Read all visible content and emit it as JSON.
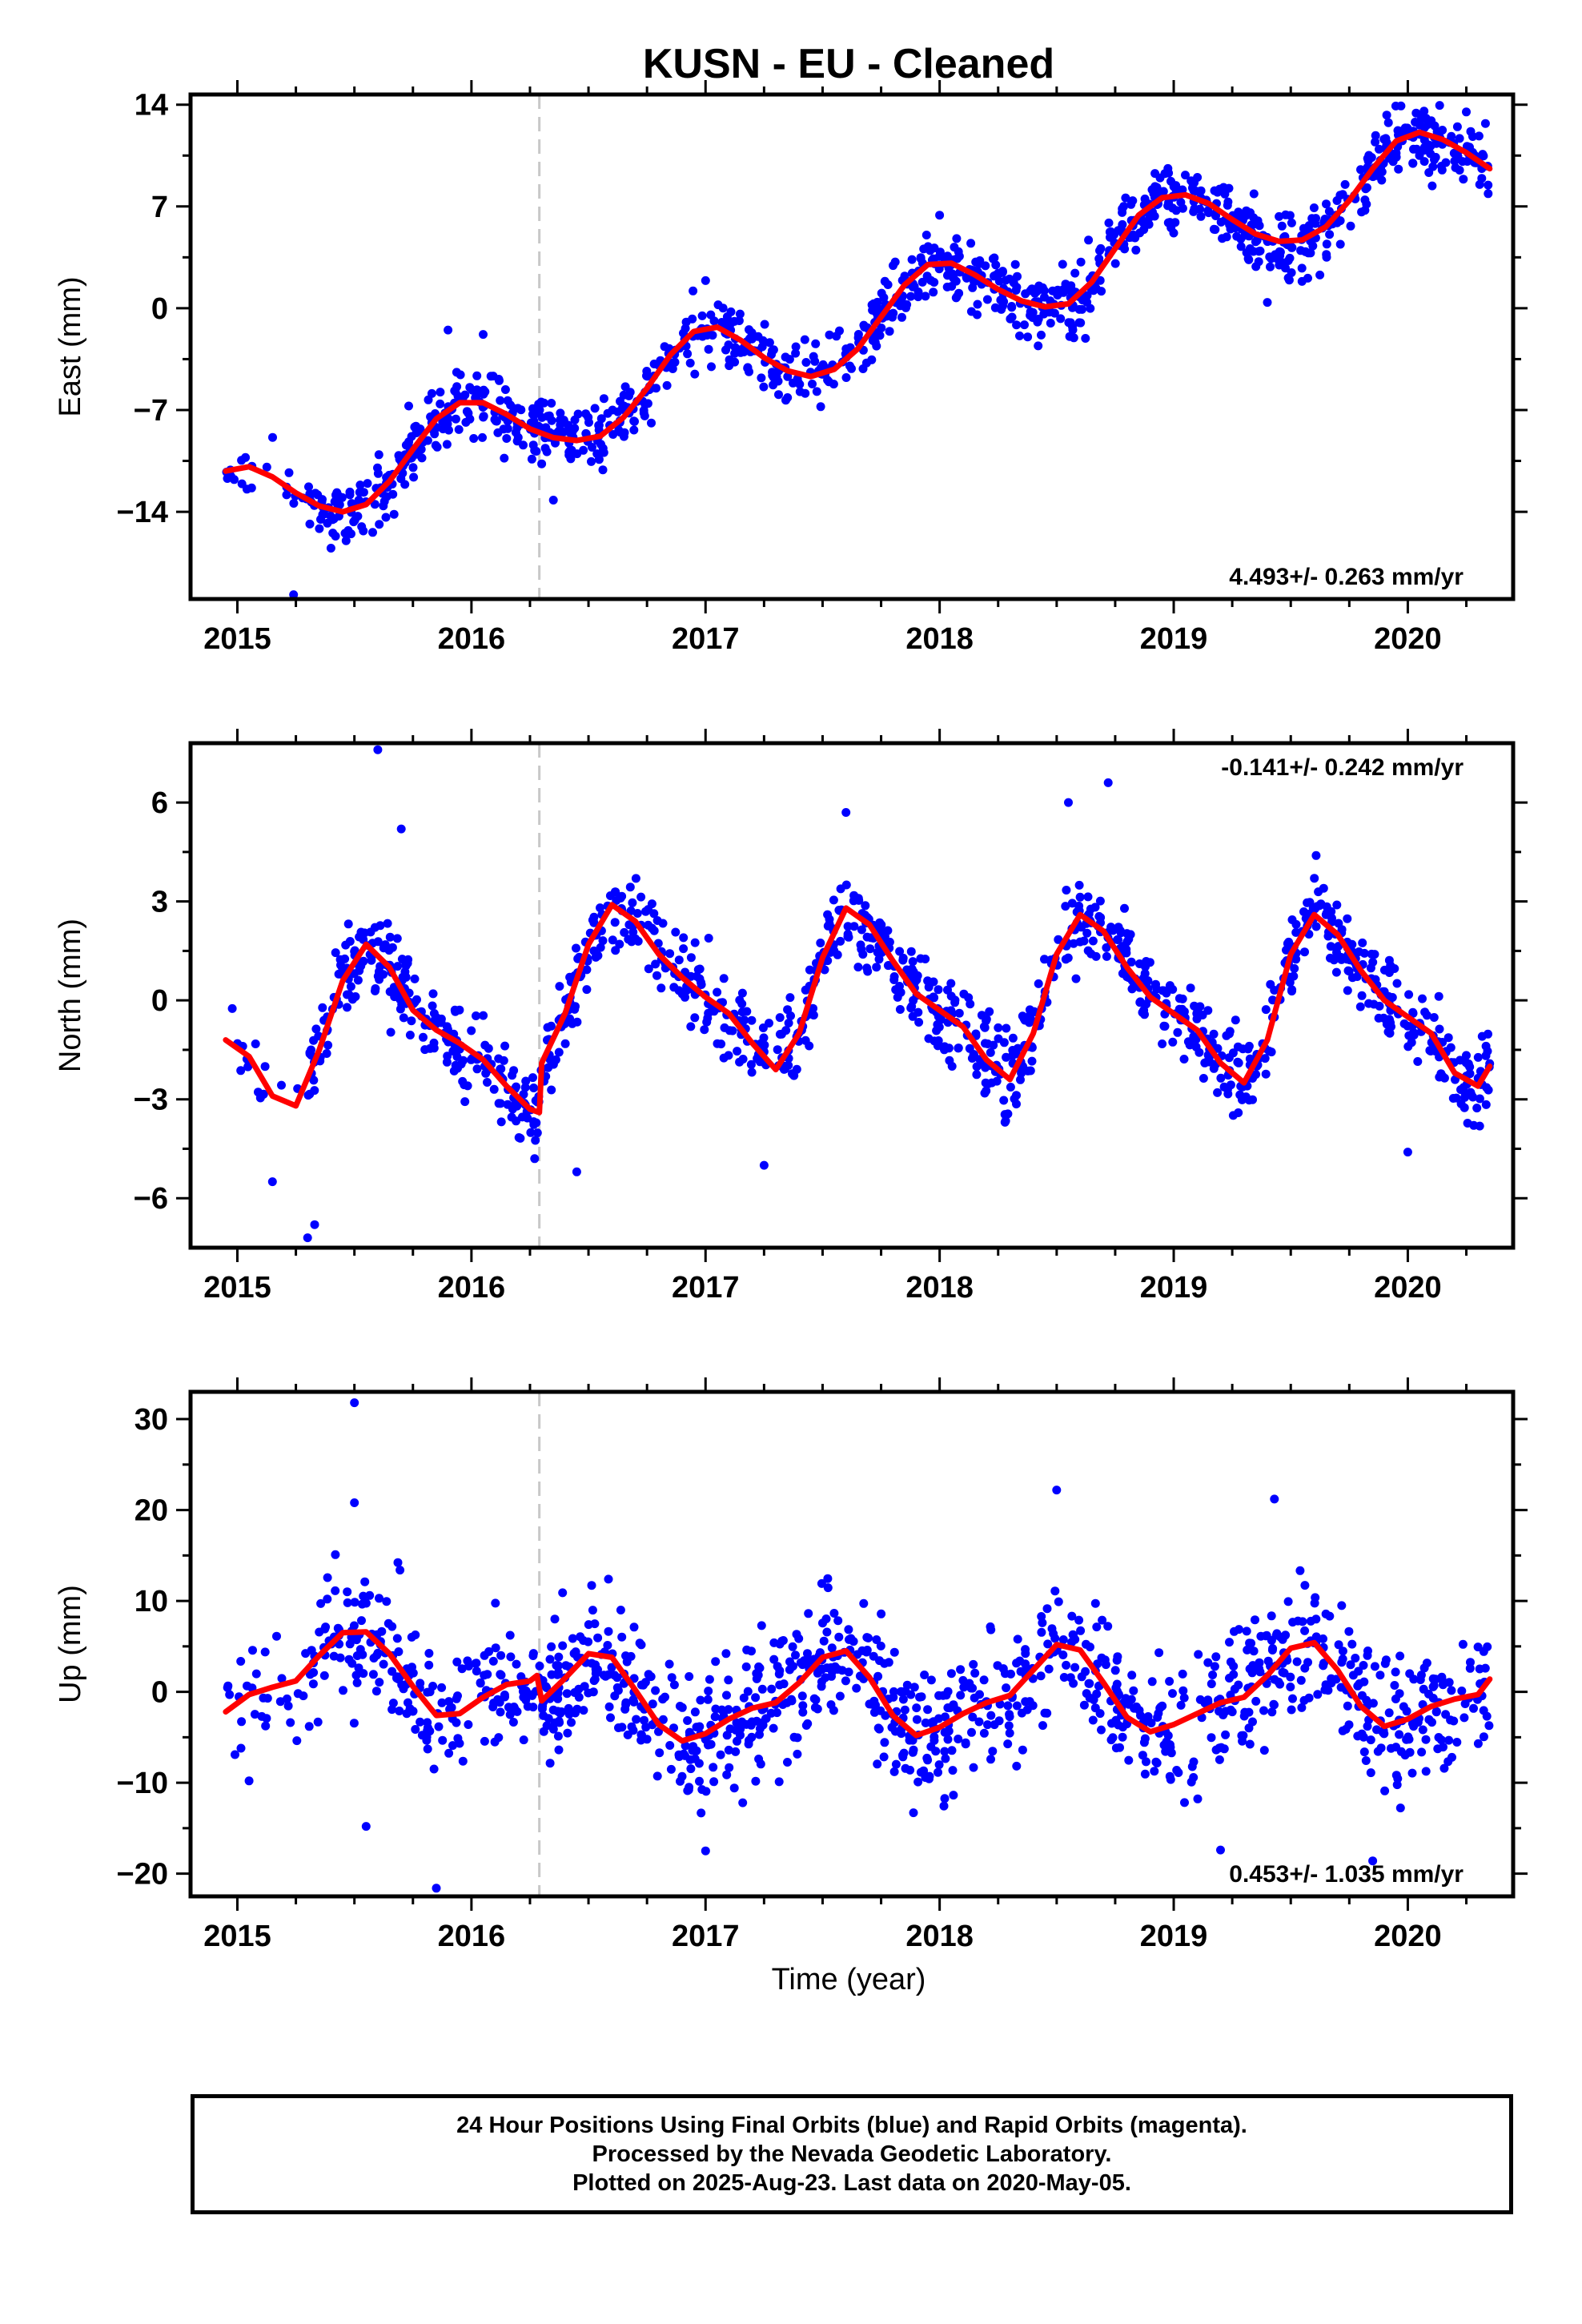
{
  "title": "KUSN  - EU - Cleaned",
  "xlabel": "Time (year)",
  "footer": [
    "24 Hour Positions Using Final Orbits (blue) and Rapid Orbits (magenta).",
    "Processed by the Nevada Geodetic Laboratory.",
    "Plotted on 2025-Aug-23. Last data on 2020-May-05."
  ],
  "colors": {
    "points": "#0000ff",
    "model": "#ff0000",
    "break": "#c8c8c8",
    "axis": "#000000"
  },
  "chart_data": [
    {
      "type": "scatter",
      "name": "east",
      "ylabel": "East (mm)",
      "rate": "4.493+/- 0.263 mm/yr",
      "rate_position": "bottom-right",
      "xlim": [
        2014.8,
        2020.45
      ],
      "ylim": [
        -20,
        14.7
      ],
      "xticks": [
        2015,
        2016,
        2017,
        2018,
        2019,
        2020
      ],
      "xtick_labels": [
        "2015",
        "2016",
        "2017",
        "2018",
        "2019",
        "2020"
      ],
      "yticks": [
        14,
        7,
        0,
        -7,
        -14
      ],
      "ytick_labels": [
        "14",
        "7",
        "0",
        "−7",
        "−14"
      ],
      "break_x": 2016.29,
      "model": {
        "x": [
          2014.95,
          2015.05,
          2015.15,
          2015.25,
          2015.35,
          2015.45,
          2015.55,
          2015.65,
          2015.75,
          2015.85,
          2015.95,
          2016.05,
          2016.15,
          2016.25,
          2016.35,
          2016.45,
          2016.55,
          2016.65,
          2016.75,
          2016.85,
          2016.95,
          2017.05,
          2017.15,
          2017.25,
          2017.35,
          2017.45,
          2017.55,
          2017.65,
          2017.75,
          2017.85,
          2017.95,
          2018.05,
          2018.15,
          2018.25,
          2018.35,
          2018.45,
          2018.55,
          2018.65,
          2018.75,
          2018.85,
          2018.95,
          2019.05,
          2019.15,
          2019.25,
          2019.35,
          2019.45,
          2019.55,
          2019.65,
          2019.75,
          2019.85,
          2019.95,
          2020.05,
          2020.15,
          2020.25,
          2020.35
        ],
        "y": [
          -11.2,
          -10.9,
          -11.6,
          -12.7,
          -13.6,
          -14.0,
          -13.5,
          -11.9,
          -9.7,
          -7.6,
          -6.5,
          -6.5,
          -7.3,
          -8.3,
          -8.9,
          -9.1,
          -8.8,
          -7.5,
          -5.5,
          -3.2,
          -1.6,
          -1.3,
          -2.2,
          -3.4,
          -4.3,
          -4.7,
          -4.2,
          -2.8,
          -0.6,
          1.6,
          3.0,
          3.1,
          2.3,
          1.3,
          0.5,
          0.1,
          0.3,
          1.8,
          4.1,
          6.4,
          7.6,
          7.8,
          7.2,
          6.1,
          5.1,
          4.6,
          4.7,
          5.6,
          7.4,
          9.6,
          11.5,
          12.1,
          11.6,
          10.7,
          9.6
        ]
      },
      "scatter": {
        "noise": 1.0,
        "spread": 2.0,
        "outliers": [
          [
            2015.24,
            -19.7
          ],
          [
            2015.4,
            -16.5
          ],
          [
            2016.05,
            -1.8
          ],
          [
            2015.9,
            -1.5
          ],
          [
            2016.35,
            -13.2
          ],
          [
            2017.0,
            1.9
          ],
          [
            2018.0,
            6.4
          ],
          [
            2020.25,
            13.5
          ],
          [
            2019.4,
            0.4
          ]
        ]
      }
    },
    {
      "type": "scatter",
      "name": "north",
      "ylabel": "North (mm)",
      "rate": "-0.141+/- 0.242 mm/yr",
      "rate_position": "top-right",
      "xlim": [
        2014.8,
        2020.45
      ],
      "ylim": [
        -7.5,
        7.8
      ],
      "xticks": [
        2015,
        2016,
        2017,
        2018,
        2019,
        2020
      ],
      "xtick_labels": [
        "2015",
        "2016",
        "2017",
        "2018",
        "2019",
        "2020"
      ],
      "yticks": [
        6,
        3,
        0,
        -3,
        -6
      ],
      "ytick_labels": [
        "6",
        "3",
        "0",
        "−3",
        "−6"
      ],
      "break_x": 2016.29,
      "model": {
        "x": [
          2014.95,
          2015.05,
          2015.15,
          2015.25,
          2015.35,
          2015.45,
          2015.55,
          2015.65,
          2015.75,
          2015.85,
          2015.95,
          2016.05,
          2016.15,
          2016.25,
          2016.29,
          2016.3,
          2016.4,
          2016.5,
          2016.6,
          2016.7,
          2016.8,
          2016.9,
          2017.0,
          2017.1,
          2017.2,
          2017.3,
          2017.4,
          2017.5,
          2017.6,
          2017.7,
          2017.8,
          2017.9,
          2018.0,
          2018.1,
          2018.2,
          2018.3,
          2018.4,
          2018.5,
          2018.6,
          2018.7,
          2018.8,
          2018.9,
          2019.0,
          2019.1,
          2019.2,
          2019.3,
          2019.4,
          2019.5,
          2019.6,
          2019.7,
          2019.8,
          2019.9,
          2020.0,
          2020.1,
          2020.2,
          2020.3,
          2020.35
        ],
        "y": [
          -1.2,
          -1.7,
          -2.9,
          -3.2,
          -1.5,
          0.6,
          1.7,
          1.0,
          -0.3,
          -0.9,
          -1.3,
          -1.8,
          -2.6,
          -3.3,
          -3.4,
          -1.9,
          -0.4,
          1.7,
          2.9,
          2.4,
          1.4,
          0.7,
          0.1,
          -0.4,
          -1.3,
          -2.1,
          -1.0,
          1.3,
          2.8,
          2.3,
          1.2,
          0.2,
          -0.3,
          -0.8,
          -1.8,
          -2.4,
          -1.0,
          1.4,
          2.6,
          2.1,
          1.0,
          0.1,
          -0.4,
          -0.9,
          -1.9,
          -2.5,
          -1.2,
          1.4,
          2.6,
          2.0,
          0.9,
          0.0,
          -0.5,
          -1.0,
          -2.2,
          -2.6,
          -2.0
        ]
      },
      "scatter": {
        "noise": 0.55,
        "spread": 1.0,
        "outliers": [
          [
            2015.6,
            7.6
          ],
          [
            2015.7,
            5.2
          ],
          [
            2015.3,
            -7.2
          ],
          [
            2015.33,
            -6.8
          ],
          [
            2015.15,
            -5.5
          ],
          [
            2016.27,
            -4.8
          ],
          [
            2016.45,
            -5.2
          ],
          [
            2017.6,
            5.7
          ],
          [
            2018.55,
            6.0
          ],
          [
            2018.72,
            6.6
          ],
          [
            2020.0,
            -4.6
          ],
          [
            2017.25,
            -5.0
          ]
        ]
      }
    },
    {
      "type": "scatter",
      "name": "up",
      "ylabel": "Up (mm)",
      "rate": "0.453+/- 1.035 mm/yr",
      "rate_position": "bottom-right",
      "xlim": [
        2014.8,
        2020.45
      ],
      "ylim": [
        -22.5,
        33
      ],
      "xticks": [
        2015,
        2016,
        2017,
        2018,
        2019,
        2020
      ],
      "xtick_labels": [
        "2015",
        "2016",
        "2017",
        "2018",
        "2019",
        "2020"
      ],
      "yticks": [
        30,
        20,
        10,
        0,
        -10,
        -20
      ],
      "ytick_labels": [
        "30",
        "20",
        "10",
        "0",
        "−10",
        "−20"
      ],
      "break_x": 2016.29,
      "model": {
        "x": [
          2014.95,
          2015.05,
          2015.15,
          2015.25,
          2015.35,
          2015.45,
          2015.55,
          2015.65,
          2015.75,
          2015.85,
          2015.95,
          2016.05,
          2016.15,
          2016.25,
          2016.28,
          2016.3,
          2016.4,
          2016.5,
          2016.6,
          2016.7,
          2016.8,
          2016.9,
          2017.0,
          2017.1,
          2017.2,
          2017.3,
          2017.4,
          2017.5,
          2017.6,
          2017.7,
          2017.8,
          2017.9,
          2018.0,
          2018.1,
          2018.2,
          2018.3,
          2018.4,
          2018.5,
          2018.6,
          2018.7,
          2018.8,
          2018.9,
          2019.0,
          2019.1,
          2019.2,
          2019.3,
          2019.4,
          2019.5,
          2019.6,
          2019.7,
          2019.8,
          2019.9,
          2020.0,
          2020.1,
          2020.2,
          2020.3,
          2020.35
        ],
        "y": [
          -2.2,
          -0.3,
          0.5,
          1.2,
          4.0,
          6.5,
          6.6,
          4.2,
          0.6,
          -2.6,
          -2.4,
          -0.6,
          0.8,
          1.2,
          1.8,
          -1.0,
          1.5,
          4.2,
          3.8,
          0.2,
          -3.6,
          -5.4,
          -4.6,
          -3.0,
          -1.8,
          -1.2,
          1.0,
          3.8,
          4.5,
          1.6,
          -2.6,
          -4.8,
          -3.9,
          -2.4,
          -1.2,
          -0.4,
          2.4,
          5.2,
          4.6,
          1.0,
          -2.8,
          -4.4,
          -3.6,
          -2.4,
          -1.2,
          -0.6,
          1.8,
          4.8,
          5.4,
          2.4,
          -1.6,
          -3.8,
          -3.0,
          -1.6,
          -0.8,
          -0.3,
          1.4
        ]
      },
      "scatter": {
        "noise": 3.5,
        "spread": 4.5,
        "outliers": [
          [
            2015.5,
            31.8
          ],
          [
            2015.85,
            -21.6
          ],
          [
            2015.5,
            20.8
          ],
          [
            2018.5,
            22.2
          ],
          [
            2019.43,
            21.2
          ],
          [
            2019.2,
            -17.4
          ],
          [
            2019.85,
            -18.6
          ],
          [
            2017.0,
            -17.5
          ],
          [
            2015.55,
            -14.8
          ],
          [
            2015.05,
            -9.8
          ]
        ]
      }
    }
  ]
}
